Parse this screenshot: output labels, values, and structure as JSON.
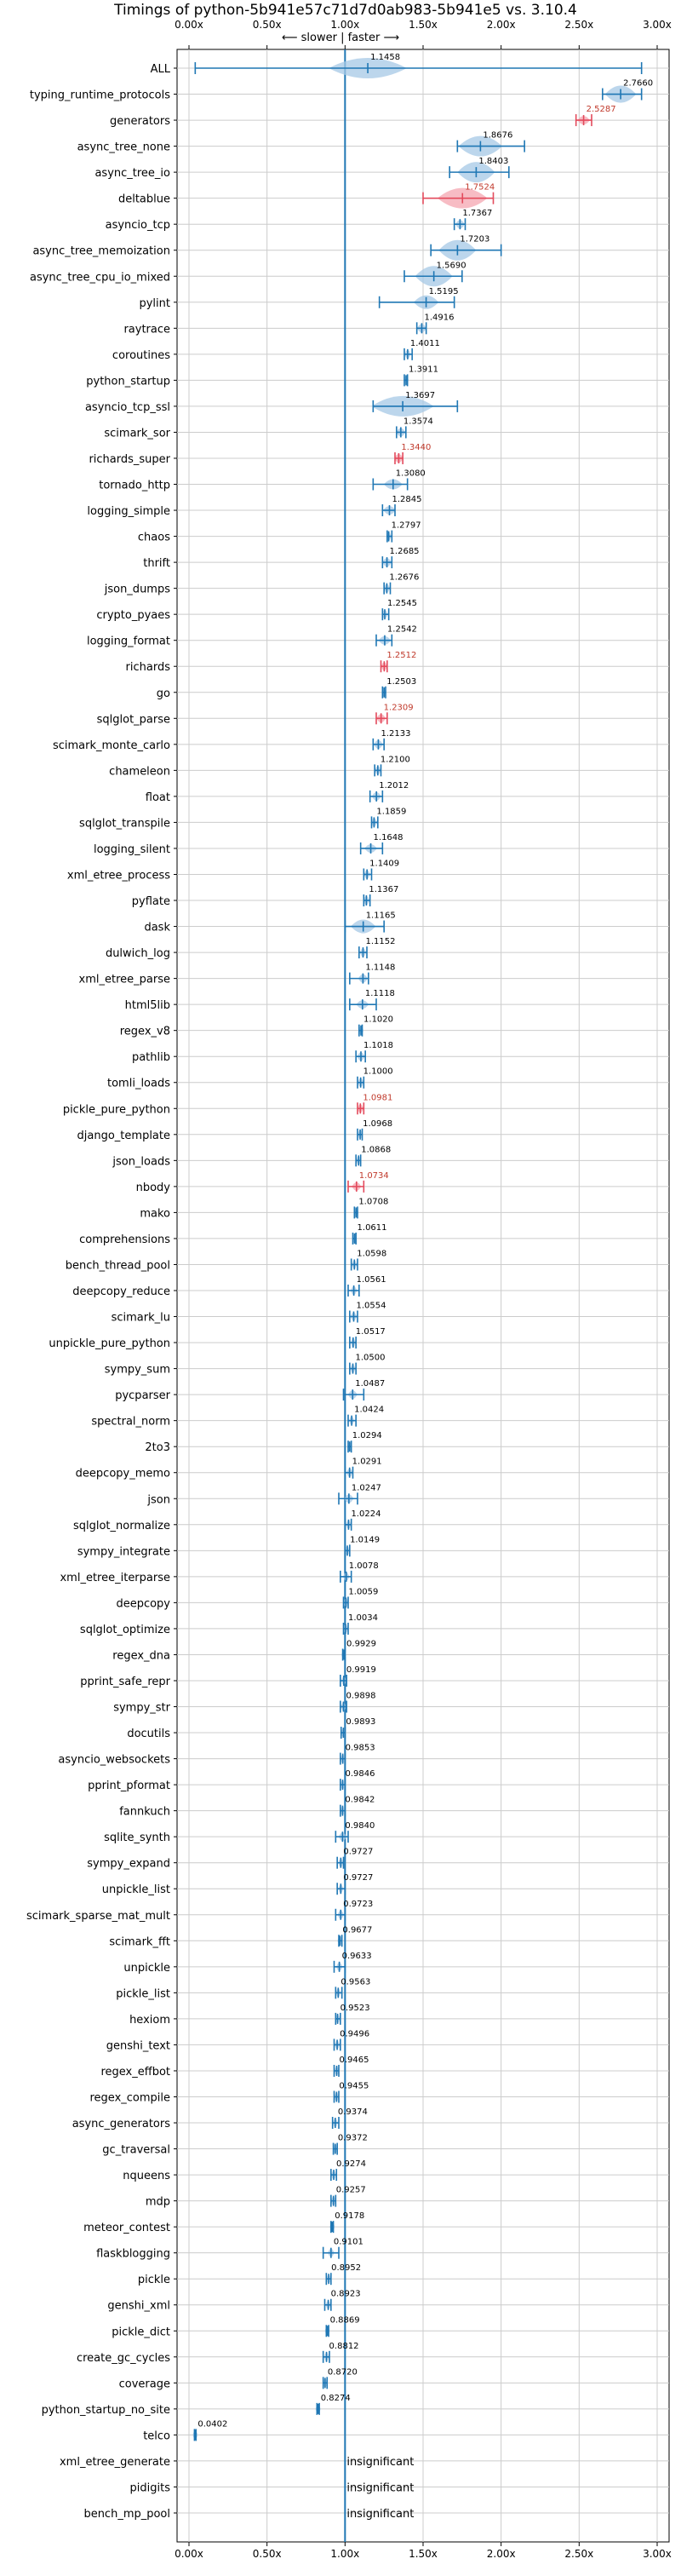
{
  "chart_data": {
    "type": "violin",
    "title": "Timings of python-5b941e57c71d7d0ab983-5b941e5 vs. 3.10.4",
    "direction_label": "⟵ slower | faster ⟶",
    "xlim": [
      0.0,
      3.0
    ],
    "x_ticks": [
      0.0,
      0.5,
      1.0,
      1.5,
      2.0,
      2.5,
      3.0
    ],
    "x_tick_labels": [
      "0.00x",
      "0.50x",
      "1.00x",
      "1.50x",
      "2.00x",
      "2.50x",
      "3.00x"
    ],
    "reference_x": 1.0,
    "grid": true,
    "insignificant_label": "insignificant",
    "benchmarks": [
      {
        "name": "ALL",
        "value": 1.1458,
        "label": "1.1458",
        "min": 0.04,
        "max": 2.9,
        "spread": 0.25,
        "status": "normal"
      },
      {
        "name": "typing_runtime_protocols",
        "value": 2.766,
        "label": "2.7660",
        "min": 2.65,
        "max": 2.9,
        "spread": 0.1,
        "status": "normal"
      },
      {
        "name": "generators",
        "value": 2.5287,
        "label": "2.5287",
        "min": 2.48,
        "max": 2.58,
        "spread": 0.04,
        "status": "slower"
      },
      {
        "name": "async_tree_none",
        "value": 1.8676,
        "label": "1.8676",
        "min": 1.72,
        "max": 2.15,
        "spread": 0.14,
        "status": "normal"
      },
      {
        "name": "async_tree_io",
        "value": 1.8403,
        "label": "1.8403",
        "min": 1.67,
        "max": 2.05,
        "spread": 0.12,
        "status": "normal"
      },
      {
        "name": "deltablue",
        "value": 1.7524,
        "label": "1.7524",
        "min": 1.5,
        "max": 1.95,
        "spread": 0.16,
        "status": "slower"
      },
      {
        "name": "asyncio_tcp",
        "value": 1.7367,
        "label": "1.7367",
        "min": 1.7,
        "max": 1.77,
        "spread": 0.03,
        "status": "normal"
      },
      {
        "name": "async_tree_memoization",
        "value": 1.7203,
        "label": "1.7203",
        "min": 1.55,
        "max": 2.0,
        "spread": 0.12,
        "status": "normal"
      },
      {
        "name": "async_tree_cpu_io_mixed",
        "value": 1.569,
        "label": "1.5690",
        "min": 1.38,
        "max": 1.75,
        "spread": 0.12,
        "status": "normal"
      },
      {
        "name": "pylint",
        "value": 1.5195,
        "label": "1.5195",
        "min": 1.22,
        "max": 1.7,
        "spread": 0.08,
        "status": "normal"
      },
      {
        "name": "raytrace",
        "value": 1.4916,
        "label": "1.4916",
        "min": 1.46,
        "max": 1.52,
        "spread": 0.03,
        "status": "normal"
      },
      {
        "name": "coroutines",
        "value": 1.4011,
        "label": "1.4011",
        "min": 1.38,
        "max": 1.43,
        "spread": 0.02,
        "status": "normal"
      },
      {
        "name": "python_startup",
        "value": 1.3911,
        "label": "1.3911",
        "min": 1.38,
        "max": 1.4,
        "spread": 0.01,
        "status": "normal"
      },
      {
        "name": "asyncio_tcp_ssl",
        "value": 1.3697,
        "label": "1.3697",
        "min": 1.18,
        "max": 1.72,
        "spread": 0.2,
        "status": "normal"
      },
      {
        "name": "scimark_sor",
        "value": 1.3574,
        "label": "1.3574",
        "min": 1.33,
        "max": 1.39,
        "spread": 0.03,
        "status": "normal"
      },
      {
        "name": "richards_super",
        "value": 1.344,
        "label": "1.3440",
        "min": 1.32,
        "max": 1.37,
        "spread": 0.03,
        "status": "slower"
      },
      {
        "name": "tornado_http",
        "value": 1.308,
        "label": "1.3080",
        "min": 1.18,
        "max": 1.4,
        "spread": 0.06,
        "status": "normal"
      },
      {
        "name": "logging_simple",
        "value": 1.2845,
        "label": "1.2845",
        "min": 1.24,
        "max": 1.32,
        "spread": 0.04,
        "status": "normal"
      },
      {
        "name": "chaos",
        "value": 1.2797,
        "label": "1.2797",
        "min": 1.27,
        "max": 1.3,
        "spread": 0.015,
        "status": "normal"
      },
      {
        "name": "thrift",
        "value": 1.2685,
        "label": "1.2685",
        "min": 1.24,
        "max": 1.3,
        "spread": 0.03,
        "status": "normal"
      },
      {
        "name": "json_dumps",
        "value": 1.2676,
        "label": "1.2676",
        "min": 1.25,
        "max": 1.29,
        "spread": 0.02,
        "status": "normal"
      },
      {
        "name": "crypto_pyaes",
        "value": 1.2545,
        "label": "1.2545",
        "min": 1.24,
        "max": 1.28,
        "spread": 0.02,
        "status": "normal"
      },
      {
        "name": "logging_format",
        "value": 1.2542,
        "label": "1.2542",
        "min": 1.2,
        "max": 1.3,
        "spread": 0.04,
        "status": "normal"
      },
      {
        "name": "richards",
        "value": 1.2512,
        "label": "1.2512",
        "min": 1.23,
        "max": 1.27,
        "spread": 0.02,
        "status": "slower"
      },
      {
        "name": "go",
        "value": 1.2503,
        "label": "1.2503",
        "min": 1.24,
        "max": 1.26,
        "spread": 0.012,
        "status": "normal"
      },
      {
        "name": "sqlglot_parse",
        "value": 1.2309,
        "label": "1.2309",
        "min": 1.2,
        "max": 1.27,
        "spread": 0.03,
        "status": "slower"
      },
      {
        "name": "scimark_monte_carlo",
        "value": 1.2133,
        "label": "1.2133",
        "min": 1.18,
        "max": 1.25,
        "spread": 0.03,
        "status": "normal"
      },
      {
        "name": "chameleon",
        "value": 1.21,
        "label": "1.2100",
        "min": 1.19,
        "max": 1.23,
        "spread": 0.02,
        "status": "normal"
      },
      {
        "name": "float",
        "value": 1.2012,
        "label": "1.2012",
        "min": 1.16,
        "max": 1.24,
        "spread": 0.03,
        "status": "normal"
      },
      {
        "name": "sqlglot_transpile",
        "value": 1.1859,
        "label": "1.1859",
        "min": 1.17,
        "max": 1.21,
        "spread": 0.02,
        "status": "normal"
      },
      {
        "name": "logging_silent",
        "value": 1.1648,
        "label": "1.1648",
        "min": 1.1,
        "max": 1.24,
        "spread": 0.04,
        "status": "normal"
      },
      {
        "name": "xml_etree_process",
        "value": 1.1409,
        "label": "1.1409",
        "min": 1.12,
        "max": 1.17,
        "spread": 0.02,
        "status": "normal"
      },
      {
        "name": "pyflate",
        "value": 1.1367,
        "label": "1.1367",
        "min": 1.12,
        "max": 1.16,
        "spread": 0.02,
        "status": "normal"
      },
      {
        "name": "dask",
        "value": 1.1165,
        "label": "1.1165",
        "min": 1.0,
        "max": 1.25,
        "spread": 0.08,
        "status": "normal"
      },
      {
        "name": "dulwich_log",
        "value": 1.1152,
        "label": "1.1152",
        "min": 1.09,
        "max": 1.14,
        "spread": 0.02,
        "status": "normal"
      },
      {
        "name": "xml_etree_parse",
        "value": 1.1148,
        "label": "1.1148",
        "min": 1.03,
        "max": 1.15,
        "spread": 0.03,
        "status": "normal"
      },
      {
        "name": "html5lib",
        "value": 1.1118,
        "label": "1.1118",
        "min": 1.03,
        "max": 1.2,
        "spread": 0.04,
        "status": "normal"
      },
      {
        "name": "regex_v8",
        "value": 1.102,
        "label": "1.1020",
        "min": 1.09,
        "max": 1.11,
        "spread": 0.008,
        "status": "normal"
      },
      {
        "name": "pathlib",
        "value": 1.1018,
        "label": "1.1018",
        "min": 1.07,
        "max": 1.13,
        "spread": 0.025,
        "status": "normal"
      },
      {
        "name": "tomli_loads",
        "value": 1.1,
        "label": "1.1000",
        "min": 1.08,
        "max": 1.12,
        "spread": 0.02,
        "status": "normal"
      },
      {
        "name": "pickle_pure_python",
        "value": 1.0981,
        "label": "1.0981",
        "min": 1.08,
        "max": 1.12,
        "spread": 0.02,
        "status": "slower"
      },
      {
        "name": "django_template",
        "value": 1.0968,
        "label": "1.0968",
        "min": 1.08,
        "max": 1.11,
        "spread": 0.015,
        "status": "normal"
      },
      {
        "name": "json_loads",
        "value": 1.0868,
        "label": "1.0868",
        "min": 1.07,
        "max": 1.1,
        "spread": 0.015,
        "status": "normal"
      },
      {
        "name": "nbody",
        "value": 1.0734,
        "label": "1.0734",
        "min": 1.02,
        "max": 1.12,
        "spread": 0.03,
        "status": "slower"
      },
      {
        "name": "mako",
        "value": 1.0708,
        "label": "1.0708",
        "min": 1.06,
        "max": 1.08,
        "spread": 0.008,
        "status": "normal"
      },
      {
        "name": "comprehensions",
        "value": 1.0611,
        "label": "1.0611",
        "min": 1.05,
        "max": 1.07,
        "spread": 0.008,
        "status": "normal"
      },
      {
        "name": "bench_thread_pool",
        "value": 1.0598,
        "label": "1.0598",
        "min": 1.04,
        "max": 1.08,
        "spread": 0.01,
        "status": "normal"
      },
      {
        "name": "deepcopy_reduce",
        "value": 1.0561,
        "label": "1.0561",
        "min": 1.02,
        "max": 1.09,
        "spread": 0.02,
        "status": "normal"
      },
      {
        "name": "scimark_lu",
        "value": 1.0554,
        "label": "1.0554",
        "min": 1.03,
        "max": 1.08,
        "spread": 0.02,
        "status": "normal"
      },
      {
        "name": "unpickle_pure_python",
        "value": 1.0517,
        "label": "1.0517",
        "min": 1.03,
        "max": 1.07,
        "spread": 0.015,
        "status": "normal"
      },
      {
        "name": "sympy_sum",
        "value": 1.05,
        "label": "1.0500",
        "min": 1.03,
        "max": 1.07,
        "spread": 0.015,
        "status": "normal"
      },
      {
        "name": "pycparser",
        "value": 1.0487,
        "label": "1.0487",
        "min": 0.99,
        "max": 1.12,
        "spread": 0.03,
        "status": "normal"
      },
      {
        "name": "spectral_norm",
        "value": 1.0424,
        "label": "1.0424",
        "min": 1.02,
        "max": 1.07,
        "spread": 0.015,
        "status": "normal"
      },
      {
        "name": "2to3",
        "value": 1.0294,
        "label": "1.0294",
        "min": 1.02,
        "max": 1.04,
        "spread": 0.008,
        "status": "normal"
      },
      {
        "name": "deepcopy_memo",
        "value": 1.0291,
        "label": "1.0291",
        "min": 1.0,
        "max": 1.05,
        "spread": 0.02,
        "status": "normal"
      },
      {
        "name": "json",
        "value": 1.0247,
        "label": "1.0247",
        "min": 0.96,
        "max": 1.08,
        "spread": 0.03,
        "status": "normal"
      },
      {
        "name": "sqlglot_normalize",
        "value": 1.0224,
        "label": "1.0224",
        "min": 1.0,
        "max": 1.04,
        "spread": 0.015,
        "status": "normal"
      },
      {
        "name": "sympy_integrate",
        "value": 1.0149,
        "label": "1.0149",
        "min": 1.0,
        "max": 1.03,
        "spread": 0.012,
        "status": "normal"
      },
      {
        "name": "xml_etree_iterparse",
        "value": 1.0078,
        "label": "1.0078",
        "min": 0.97,
        "max": 1.04,
        "spread": 0.02,
        "status": "normal"
      },
      {
        "name": "deepcopy",
        "value": 1.0059,
        "label": "1.0059",
        "min": 0.99,
        "max": 1.02,
        "spread": 0.012,
        "status": "normal"
      },
      {
        "name": "sqlglot_optimize",
        "value": 1.0034,
        "label": "1.0034",
        "min": 0.99,
        "max": 1.02,
        "spread": 0.01,
        "status": "normal"
      },
      {
        "name": "regex_dna",
        "value": 0.9929,
        "label": "0.9929",
        "min": 0.985,
        "max": 1.0,
        "spread": 0.006,
        "status": "normal"
      },
      {
        "name": "pprint_safe_repr",
        "value": 0.9919,
        "label": "0.9919",
        "min": 0.97,
        "max": 1.01,
        "spread": 0.012,
        "status": "normal"
      },
      {
        "name": "sympy_str",
        "value": 0.9898,
        "label": "0.9898",
        "min": 0.97,
        "max": 1.01,
        "spread": 0.012,
        "status": "normal"
      },
      {
        "name": "docutils",
        "value": 0.9893,
        "label": "0.9893",
        "min": 0.975,
        "max": 1.0,
        "spread": 0.01,
        "status": "normal"
      },
      {
        "name": "asyncio_websockets",
        "value": 0.9853,
        "label": "0.9853",
        "min": 0.97,
        "max": 1.0,
        "spread": 0.01,
        "status": "normal"
      },
      {
        "name": "pprint_pformat",
        "value": 0.9846,
        "label": "0.9846",
        "min": 0.97,
        "max": 1.0,
        "spread": 0.01,
        "status": "normal"
      },
      {
        "name": "fannkuch",
        "value": 0.9842,
        "label": "0.9842",
        "min": 0.97,
        "max": 1.0,
        "spread": 0.01,
        "status": "normal"
      },
      {
        "name": "sqlite_synth",
        "value": 0.984,
        "label": "0.9840",
        "min": 0.94,
        "max": 1.02,
        "spread": 0.025,
        "status": "normal"
      },
      {
        "name": "sympy_expand",
        "value": 0.9727,
        "label": "0.9727",
        "min": 0.95,
        "max": 0.99,
        "spread": 0.012,
        "status": "normal"
      },
      {
        "name": "unpickle_list",
        "value": 0.9727,
        "label": "0.9727",
        "min": 0.95,
        "max": 1.0,
        "spread": 0.012,
        "status": "normal"
      },
      {
        "name": "scimark_sparse_mat_mult",
        "value": 0.9723,
        "label": "0.9723",
        "min": 0.94,
        "max": 1.0,
        "spread": 0.02,
        "status": "normal"
      },
      {
        "name": "scimark_fft",
        "value": 0.9677,
        "label": "0.9677",
        "min": 0.96,
        "max": 0.98,
        "spread": 0.008,
        "status": "normal"
      },
      {
        "name": "unpickle",
        "value": 0.9633,
        "label": "0.9633",
        "min": 0.93,
        "max": 1.0,
        "spread": 0.02,
        "status": "normal"
      },
      {
        "name": "pickle_list",
        "value": 0.9563,
        "label": "0.9563",
        "min": 0.94,
        "max": 0.98,
        "spread": 0.012,
        "status": "normal"
      },
      {
        "name": "hexiom",
        "value": 0.9523,
        "label": "0.9523",
        "min": 0.94,
        "max": 0.97,
        "spread": 0.01,
        "status": "normal"
      },
      {
        "name": "genshi_text",
        "value": 0.9496,
        "label": "0.9496",
        "min": 0.93,
        "max": 0.97,
        "spread": 0.012,
        "status": "normal"
      },
      {
        "name": "regex_effbot",
        "value": 0.9465,
        "label": "0.9465",
        "min": 0.93,
        "max": 0.96,
        "spread": 0.01,
        "status": "normal"
      },
      {
        "name": "regex_compile",
        "value": 0.9455,
        "label": "0.9455",
        "min": 0.93,
        "max": 0.96,
        "spread": 0.01,
        "status": "normal"
      },
      {
        "name": "async_generators",
        "value": 0.9374,
        "label": "0.9374",
        "min": 0.92,
        "max": 0.96,
        "spread": 0.012,
        "status": "normal"
      },
      {
        "name": "gc_traversal",
        "value": 0.9372,
        "label": "0.9372",
        "min": 0.925,
        "max": 0.95,
        "spread": 0.01,
        "status": "normal"
      },
      {
        "name": "nqueens",
        "value": 0.9274,
        "label": "0.9274",
        "min": 0.91,
        "max": 0.945,
        "spread": 0.012,
        "status": "normal"
      },
      {
        "name": "mdp",
        "value": 0.9257,
        "label": "0.9257",
        "min": 0.91,
        "max": 0.94,
        "spread": 0.01,
        "status": "normal"
      },
      {
        "name": "meteor_contest",
        "value": 0.9178,
        "label": "0.9178",
        "min": 0.91,
        "max": 0.925,
        "spread": 0.006,
        "status": "normal"
      },
      {
        "name": "flaskblogging",
        "value": 0.9101,
        "label": "0.9101",
        "min": 0.86,
        "max": 0.96,
        "spread": 0.02,
        "status": "normal"
      },
      {
        "name": "pickle",
        "value": 0.8952,
        "label": "0.8952",
        "min": 0.88,
        "max": 0.91,
        "spread": 0.01,
        "status": "normal"
      },
      {
        "name": "genshi_xml",
        "value": 0.8923,
        "label": "0.8923",
        "min": 0.87,
        "max": 0.91,
        "spread": 0.012,
        "status": "normal"
      },
      {
        "name": "pickle_dict",
        "value": 0.8869,
        "label": "0.8869",
        "min": 0.88,
        "max": 0.895,
        "spread": 0.006,
        "status": "normal"
      },
      {
        "name": "create_gc_cycles",
        "value": 0.8812,
        "label": "0.8812",
        "min": 0.86,
        "max": 0.9,
        "spread": 0.012,
        "status": "normal"
      },
      {
        "name": "coverage",
        "value": 0.872,
        "label": "0.8720",
        "min": 0.86,
        "max": 0.885,
        "spread": 0.008,
        "status": "normal"
      },
      {
        "name": "python_startup_no_site",
        "value": 0.8274,
        "label": "0.8274",
        "min": 0.82,
        "max": 0.835,
        "spread": 0.006,
        "status": "normal"
      },
      {
        "name": "telco",
        "value": 0.0402,
        "label": "0.0402",
        "min": 0.035,
        "max": 0.045,
        "spread": 0.004,
        "status": "normal"
      },
      {
        "name": "xml_etree_generate",
        "value": null,
        "label": "",
        "status": "insignificant"
      },
      {
        "name": "pidigits",
        "value": null,
        "label": "",
        "status": "insignificant"
      },
      {
        "name": "bench_mp_pool",
        "value": null,
        "label": "",
        "status": "insignificant"
      }
    ]
  },
  "colors": {
    "normal_fill": "#a6c8e6",
    "normal_line": "#1f77b4",
    "slower_fill": "#f4a6b0",
    "slower_line": "#e34a5c",
    "grid": "#cccccc",
    "text": "#000000"
  }
}
